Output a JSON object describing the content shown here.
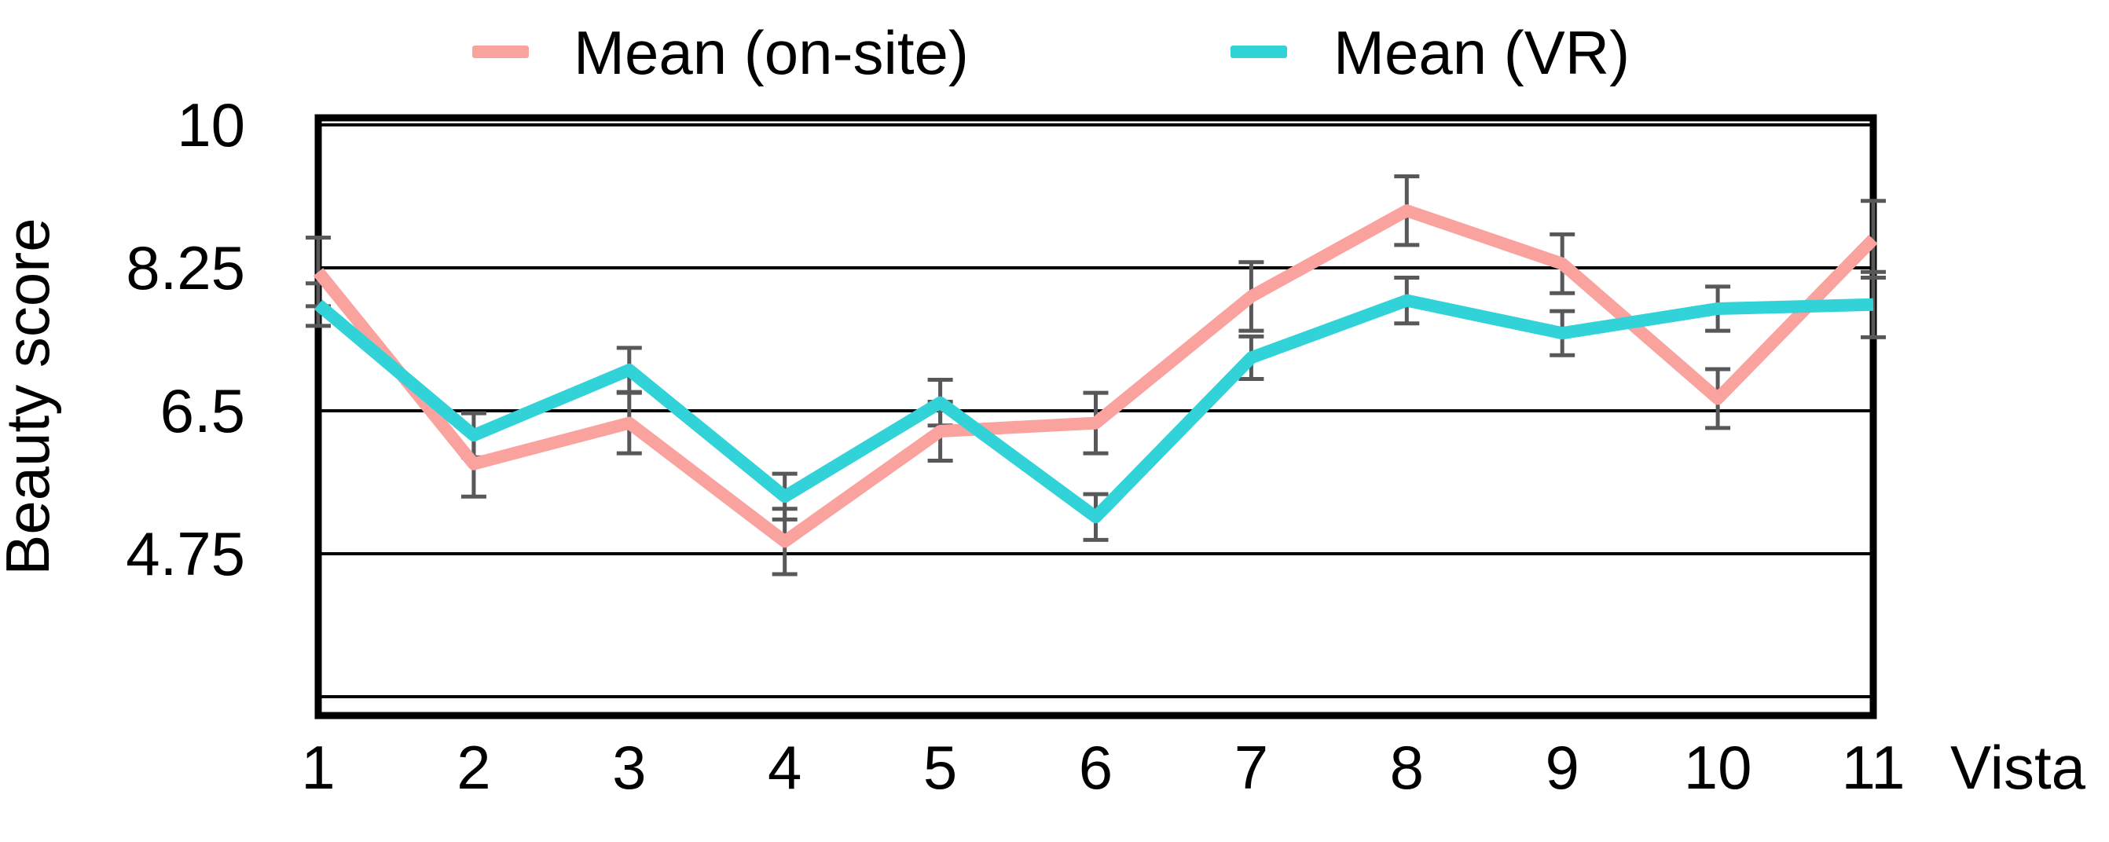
{
  "chart_data": {
    "type": "line",
    "title": "",
    "xlabel": "Vista",
    "ylabel": "Beauty score",
    "x": [
      1,
      2,
      3,
      4,
      5,
      6,
      7,
      8,
      9,
      10,
      11
    ],
    "xtick_labels": [
      "1",
      "2",
      "3",
      "4",
      "5",
      "6",
      "7",
      "8",
      "9",
      "10",
      "11"
    ],
    "ylim": [
      3,
      10
    ],
    "yticks": [
      10,
      8.25,
      6.5,
      4.75
    ],
    "ytick_labels": [
      "10",
      "8.25",
      "6.5",
      "4.75"
    ],
    "gridline_values": [
      10,
      8.25,
      6.5,
      4.75,
      3
    ],
    "grid": "horizontal",
    "legend_position": "top",
    "error_bars": true,
    "error_bar_color": "#58585A",
    "frame_color": "#000000",
    "series": [
      {
        "name": "Mean (on-site)",
        "color": "#FAA39E",
        "values": [
          8.2,
          5.85,
          6.35,
          4.9,
          6.25,
          6.35,
          7.9,
          8.95,
          8.3,
          6.65,
          8.6
        ],
        "errors": [
          0.42,
          0.4,
          0.37,
          0.4,
          0.36,
          0.37,
          0.42,
          0.42,
          0.36,
          0.36,
          0.47
        ]
      },
      {
        "name": "Mean (VR)",
        "color": "#31D2D8",
        "values": [
          7.8,
          6.2,
          7.0,
          5.45,
          6.6,
          5.2,
          7.15,
          7.85,
          7.45,
          7.75,
          7.8
        ],
        "errors": [
          0.26,
          0.27,
          0.27,
          0.28,
          0.28,
          0.28,
          0.26,
          0.28,
          0.27,
          0.27,
          0.4
        ]
      }
    ]
  }
}
